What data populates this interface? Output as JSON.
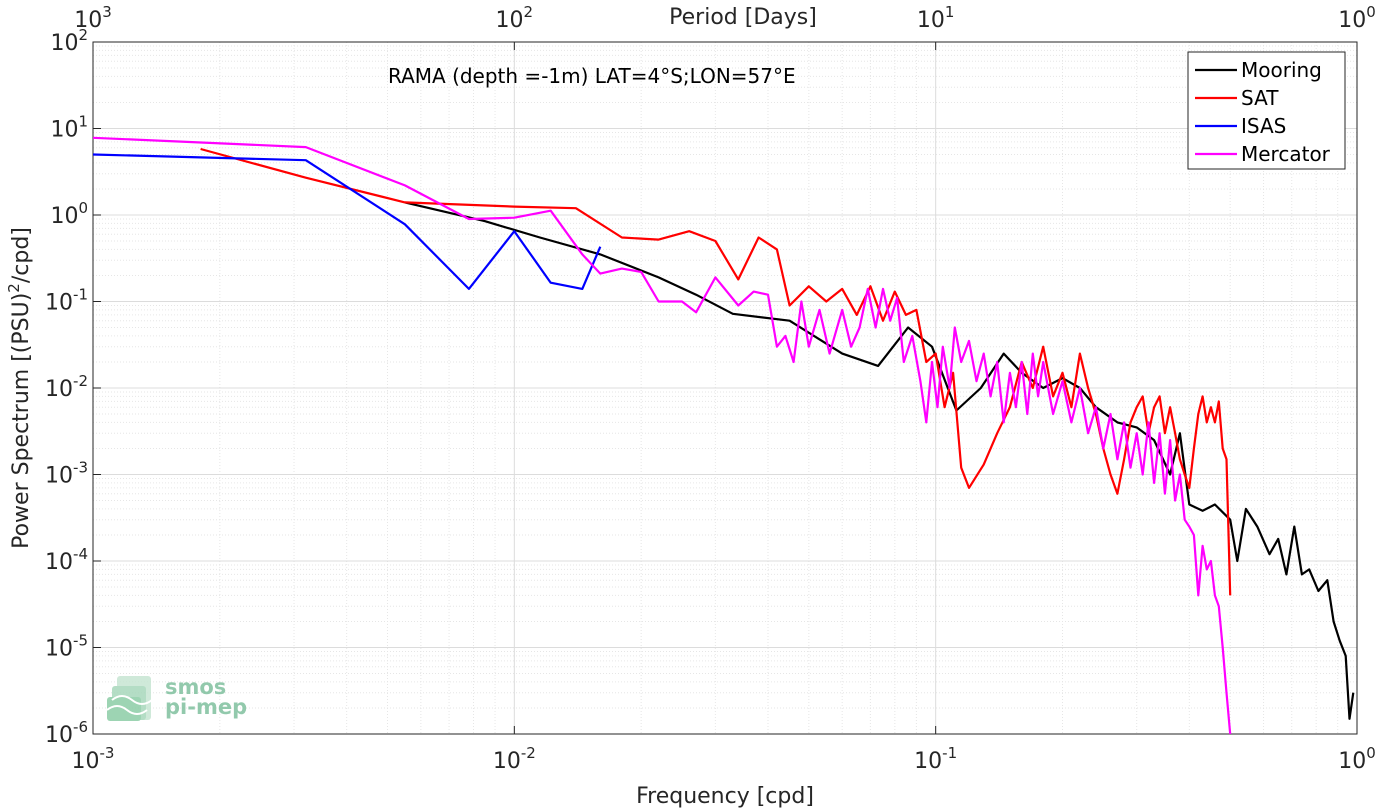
{
  "chart_data": {
    "type": "line",
    "title": "",
    "annotation": "RAMA (depth =-1m) LAT=4°S;LON=57°E",
    "xlabel": "Frequency [cpd]",
    "ylabel": "Power Spectrum [(PSU)",
    "ylabel_sup": "2",
    "ylabel_tail": "/cpd]",
    "top_xlabel": "Period [Days]",
    "xscale": "log",
    "yscale": "log",
    "xlim": [
      0.001,
      1
    ],
    "ylim": [
      1e-06,
      100
    ],
    "grid": true,
    "legend_position": "top-right",
    "x_ticks": [
      {
        "value": 0.001,
        "base": "10",
        "exp": "-3"
      },
      {
        "value": 0.01,
        "base": "10",
        "exp": "-2"
      },
      {
        "value": 0.1,
        "base": "10",
        "exp": "-1"
      },
      {
        "value": 1,
        "base": "10",
        "exp": "0"
      }
    ],
    "top_ticks": [
      {
        "value": 0.001,
        "base": "10",
        "exp": "3"
      },
      {
        "value": 0.01,
        "base": "10",
        "exp": "2"
      },
      {
        "value": 0.1,
        "base": "10",
        "exp": "1"
      },
      {
        "value": 1,
        "base": "10",
        "exp": "0"
      }
    ],
    "y_ticks": [
      {
        "value": 100,
        "base": "10",
        "exp": "2"
      },
      {
        "value": 10,
        "base": "10",
        "exp": "1"
      },
      {
        "value": 1,
        "base": "10",
        "exp": "0"
      },
      {
        "value": 0.1,
        "base": "10",
        "exp": "-1"
      },
      {
        "value": 0.01,
        "base": "10",
        "exp": "-2"
      },
      {
        "value": 0.001,
        "base": "10",
        "exp": "-3"
      },
      {
        "value": 0.0001,
        "base": "10",
        "exp": "-4"
      },
      {
        "value": 1e-05,
        "base": "10",
        "exp": "-5"
      },
      {
        "value": 1e-06,
        "base": "10",
        "exp": "-6"
      }
    ],
    "series": [
      {
        "name": "Mooring",
        "color": "#000000",
        "points": [
          [
            0.0055,
            1.4
          ],
          [
            0.0085,
            0.85
          ],
          [
            0.0115,
            0.55
          ],
          [
            0.016,
            0.35
          ],
          [
            0.022,
            0.19
          ],
          [
            0.027,
            0.12
          ],
          [
            0.033,
            0.072
          ],
          [
            0.045,
            0.06
          ],
          [
            0.06,
            0.025
          ],
          [
            0.073,
            0.018
          ],
          [
            0.086,
            0.05
          ],
          [
            0.098,
            0.03
          ],
          [
            0.112,
            0.0055
          ],
          [
            0.128,
            0.01
          ],
          [
            0.145,
            0.025
          ],
          [
            0.16,
            0.015
          ],
          [
            0.18,
            0.01
          ],
          [
            0.2,
            0.013
          ],
          [
            0.22,
            0.01
          ],
          [
            0.24,
            0.006
          ],
          [
            0.27,
            0.004
          ],
          [
            0.3,
            0.0035
          ],
          [
            0.33,
            0.0025
          ],
          [
            0.36,
            0.001
          ],
          [
            0.38,
            0.003
          ],
          [
            0.4,
            0.00045
          ],
          [
            0.43,
            0.00038
          ],
          [
            0.46,
            0.00045
          ],
          [
            0.5,
            0.0003
          ],
          [
            0.52,
            0.0001
          ],
          [
            0.545,
            0.0004
          ],
          [
            0.58,
            0.00025
          ],
          [
            0.62,
            0.00012
          ],
          [
            0.65,
            0.00018
          ],
          [
            0.68,
            7e-05
          ],
          [
            0.71,
            0.00025
          ],
          [
            0.74,
            7e-05
          ],
          [
            0.77,
            8e-05
          ],
          [
            0.81,
            4.5e-05
          ],
          [
            0.85,
            6e-05
          ],
          [
            0.88,
            2e-05
          ],
          [
            0.91,
            1.2e-05
          ],
          [
            0.94,
            8e-06
          ],
          [
            0.96,
            1.5e-06
          ],
          [
            0.98,
            3e-06
          ]
        ]
      },
      {
        "name": "SAT",
        "color": "#ff0000",
        "points": [
          [
            0.0018,
            5.8
          ],
          [
            0.0032,
            2.7
          ],
          [
            0.0055,
            1.4
          ],
          [
            0.01,
            1.25
          ],
          [
            0.014,
            1.2
          ],
          [
            0.018,
            0.55
          ],
          [
            0.022,
            0.52
          ],
          [
            0.026,
            0.65
          ],
          [
            0.03,
            0.5
          ],
          [
            0.034,
            0.18
          ],
          [
            0.038,
            0.55
          ],
          [
            0.042,
            0.4
          ],
          [
            0.045,
            0.09
          ],
          [
            0.05,
            0.15
          ],
          [
            0.055,
            0.1
          ],
          [
            0.06,
            0.14
          ],
          [
            0.065,
            0.07
          ],
          [
            0.07,
            0.15
          ],
          [
            0.075,
            0.06
          ],
          [
            0.08,
            0.13
          ],
          [
            0.085,
            0.07
          ],
          [
            0.09,
            0.08
          ],
          [
            0.095,
            0.02
          ],
          [
            0.1,
            0.025
          ],
          [
            0.105,
            0.006
          ],
          [
            0.11,
            0.015
          ],
          [
            0.115,
            0.0012
          ],
          [
            0.12,
            0.0007
          ],
          [
            0.13,
            0.0013
          ],
          [
            0.14,
            0.003
          ],
          [
            0.15,
            0.006
          ],
          [
            0.16,
            0.02
          ],
          [
            0.17,
            0.01
          ],
          [
            0.18,
            0.03
          ],
          [
            0.19,
            0.008
          ],
          [
            0.2,
            0.015
          ],
          [
            0.21,
            0.006
          ],
          [
            0.22,
            0.025
          ],
          [
            0.23,
            0.01
          ],
          [
            0.24,
            0.005
          ],
          [
            0.25,
            0.002
          ],
          [
            0.26,
            0.001
          ],
          [
            0.27,
            0.0006
          ],
          [
            0.28,
            0.0015
          ],
          [
            0.29,
            0.004
          ],
          [
            0.3,
            0.006
          ],
          [
            0.31,
            0.008
          ],
          [
            0.32,
            0.003
          ],
          [
            0.33,
            0.006
          ],
          [
            0.34,
            0.008
          ],
          [
            0.35,
            0.003
          ],
          [
            0.36,
            0.006
          ],
          [
            0.37,
            0.003
          ],
          [
            0.38,
            0.0015
          ],
          [
            0.39,
            0.001
          ],
          [
            0.4,
            0.0007
          ],
          [
            0.41,
            0.002
          ],
          [
            0.42,
            0.005
          ],
          [
            0.43,
            0.008
          ],
          [
            0.44,
            0.004
          ],
          [
            0.45,
            0.006
          ],
          [
            0.46,
            0.004
          ],
          [
            0.47,
            0.007
          ],
          [
            0.48,
            0.002
          ],
          [
            0.49,
            0.0015
          ],
          [
            0.5,
            4e-05
          ]
        ]
      },
      {
        "name": "ISAS",
        "color": "#0000ff",
        "points": [
          [
            0.001,
            5.0
          ],
          [
            0.0032,
            4.3
          ],
          [
            0.0055,
            0.78
          ],
          [
            0.0078,
            0.14
          ],
          [
            0.01,
            0.65
          ],
          [
            0.0122,
            0.165
          ],
          [
            0.0145,
            0.14
          ],
          [
            0.016,
            0.43
          ]
        ]
      },
      {
        "name": "Mercator",
        "color": "#ff00ff",
        "points": [
          [
            0.001,
            7.8
          ],
          [
            0.0032,
            6.1
          ],
          [
            0.0055,
            2.2
          ],
          [
            0.0078,
            0.9
          ],
          [
            0.01,
            0.93
          ],
          [
            0.0122,
            1.12
          ],
          [
            0.0145,
            0.35
          ],
          [
            0.016,
            0.21
          ],
          [
            0.018,
            0.24
          ],
          [
            0.02,
            0.22
          ],
          [
            0.022,
            0.1
          ],
          [
            0.025,
            0.1
          ],
          [
            0.027,
            0.075
          ],
          [
            0.03,
            0.19
          ],
          [
            0.034,
            0.09
          ],
          [
            0.037,
            0.13
          ],
          [
            0.04,
            0.12
          ],
          [
            0.042,
            0.03
          ],
          [
            0.044,
            0.04
          ],
          [
            0.046,
            0.02
          ],
          [
            0.048,
            0.1
          ],
          [
            0.05,
            0.03
          ],
          [
            0.053,
            0.08
          ],
          [
            0.056,
            0.025
          ],
          [
            0.06,
            0.08
          ],
          [
            0.063,
            0.03
          ],
          [
            0.066,
            0.05
          ],
          [
            0.069,
            0.14
          ],
          [
            0.072,
            0.05
          ],
          [
            0.075,
            0.14
          ],
          [
            0.078,
            0.06
          ],
          [
            0.081,
            0.11
          ],
          [
            0.084,
            0.02
          ],
          [
            0.088,
            0.04
          ],
          [
            0.092,
            0.012
          ],
          [
            0.095,
            0.004
          ],
          [
            0.098,
            0.02
          ],
          [
            0.101,
            0.006
          ],
          [
            0.104,
            0.03
          ],
          [
            0.108,
            0.01
          ],
          [
            0.111,
            0.05
          ],
          [
            0.115,
            0.02
          ],
          [
            0.12,
            0.035
          ],
          [
            0.125,
            0.012
          ],
          [
            0.13,
            0.025
          ],
          [
            0.135,
            0.008
          ],
          [
            0.14,
            0.02
          ],
          [
            0.145,
            0.004
          ],
          [
            0.15,
            0.015
          ],
          [
            0.155,
            0.006
          ],
          [
            0.16,
            0.02
          ],
          [
            0.165,
            0.005
          ],
          [
            0.17,
            0.025
          ],
          [
            0.175,
            0.008
          ],
          [
            0.18,
            0.02
          ],
          [
            0.19,
            0.005
          ],
          [
            0.2,
            0.012
          ],
          [
            0.21,
            0.004
          ],
          [
            0.22,
            0.01
          ],
          [
            0.23,
            0.003
          ],
          [
            0.24,
            0.006
          ],
          [
            0.25,
            0.002
          ],
          [
            0.26,
            0.005
          ],
          [
            0.27,
            0.0015
          ],
          [
            0.28,
            0.004
          ],
          [
            0.29,
            0.0012
          ],
          [
            0.3,
            0.003
          ],
          [
            0.31,
            0.001
          ],
          [
            0.32,
            0.004
          ],
          [
            0.33,
            0.0008
          ],
          [
            0.34,
            0.003
          ],
          [
            0.35,
            0.0006
          ],
          [
            0.36,
            0.0025
          ],
          [
            0.37,
            0.0005
          ],
          [
            0.38,
            0.001
          ],
          [
            0.39,
            0.0003
          ],
          [
            0.4,
            0.00025
          ],
          [
            0.41,
            0.0002
          ],
          [
            0.42,
            4e-05
          ],
          [
            0.43,
            0.00015
          ],
          [
            0.44,
            8e-05
          ],
          [
            0.45,
            0.0001
          ],
          [
            0.46,
            4e-05
          ],
          [
            0.47,
            3e-05
          ],
          [
            0.48,
            1e-05
          ],
          [
            0.49,
            3e-06
          ],
          [
            0.5,
            1e-06
          ]
        ]
      }
    ]
  },
  "logo": {
    "line1": "smos",
    "line2": "pi-mep"
  }
}
